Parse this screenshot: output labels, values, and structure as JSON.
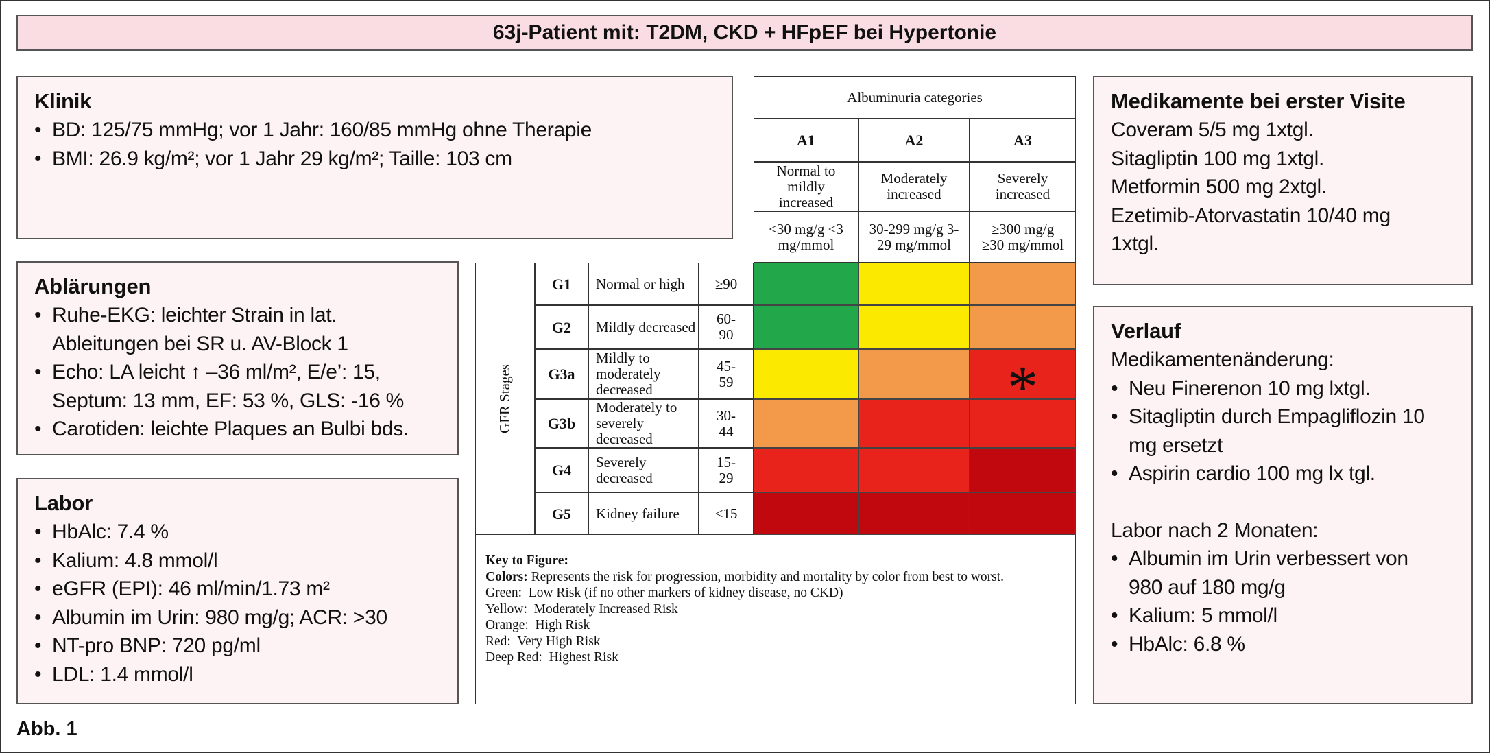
{
  "title": "63j-Patient mit: T2DM, CKD + HFpEF bei Hypertonie",
  "klinik": {
    "heading": "Klinik",
    "items": [
      "BD: 125/75 mmHg; vor 1 Jahr: 160/85 mmHg ohne Therapie",
      "BMI: 26.9 kg/m²; vor 1 Jahr 29 kg/m²; Taille: 103 cm"
    ]
  },
  "ablaerungen": {
    "heading": "Ablärungen",
    "items": [
      "Ruhe-EKG: leichter Strain in lat. Ableitungen bei SR u. AV-Block 1",
      "Echo: LA leicht ↑ –36 ml/m², E/e’: 15, Septum: 13 mm, EF: 53 %, GLS: -16 %",
      "Carotiden: leichte Plaques an Bulbi bds."
    ]
  },
  "labor": {
    "heading": "Labor",
    "items": [
      "HbAlc: 7.4 %",
      "Kalium: 4.8 mmol/l",
      "eGFR (EPI): 46 ml/min/1.73 m²",
      "Albumin im Urin: 980 mg/g; ACR: >30",
      "NT-pro BNP: 720 pg/ml",
      "LDL: 1.4 mmol/l"
    ]
  },
  "medikamente": {
    "heading": "Medikamente bei erster Visite",
    "lines": [
      "Coveram 5/5 mg 1xtgl.",
      "Sitagliptin 100 mg 1xtgl.",
      "Metformin 500 mg 2xtgl.",
      "Ezetimib-Atorvastatin 10/40 mg 1xtgl."
    ]
  },
  "verlauf": {
    "heading": "Verlauf",
    "sub1": "Medikamentenänderung:",
    "items1": [
      "Neu Finerenon 10 mg lxtgl.",
      "Sitagliptin durch Empagliflozin 10 mg ersetzt",
      "Aspirin cardio 100 mg lx tgl."
    ],
    "sub2": "Labor nach 2 Monaten:",
    "items2": [
      "Albumin im Urin verbessert von 980 auf 180 mg/g",
      "Kalium: 5 mmol/l",
      "HbAlc: 6.8 %"
    ]
  },
  "figure_label": "Abb. 1",
  "kdigo": {
    "albuminuria_title": "Albuminuria categories",
    "gfr_title": "GFR Stages",
    "columns": [
      {
        "code": "A1",
        "desc": "Normal to mildly increased",
        "range": "<30 mg/g <3 mg/mmol"
      },
      {
        "code": "A2",
        "desc": "Moderately increased",
        "range": "30-299 mg/g 3-29 mg/mmol"
      },
      {
        "code": "A3",
        "desc": "Severely increased",
        "range": "≥300 mg/g ≥30 mg/mmol"
      }
    ],
    "rows": [
      {
        "code": "G1",
        "desc": "Normal or high",
        "range": "≥90",
        "risk": [
          "green",
          "yellow",
          "orange"
        ]
      },
      {
        "code": "G2",
        "desc": "Mildly decreased",
        "range": "60-90",
        "risk": [
          "green",
          "yellow",
          "orange"
        ]
      },
      {
        "code": "G3a",
        "desc": "Mildly to moderately decreased",
        "range": "45-59",
        "risk": [
          "yellow",
          "orange",
          "red"
        ]
      },
      {
        "code": "G3b",
        "desc": "Moderately to severely decreased",
        "range": "30-44",
        "risk": [
          "orange",
          "red",
          "red"
        ]
      },
      {
        "code": "G4",
        "desc": "Severely decreased",
        "range": "15-29",
        "risk": [
          "red",
          "red",
          "deepred"
        ]
      },
      {
        "code": "G5",
        "desc": "Kidney failure",
        "range": "<15",
        "risk": [
          "deepred",
          "deepred",
          "deepred"
        ]
      }
    ],
    "marker": {
      "symbol": "*",
      "row": "G3a",
      "column": "A3"
    },
    "colors": {
      "green": "#22a84b",
      "yellow": "#fbe900",
      "orange": "#f39a4a",
      "red": "#e8231c",
      "deepred": "#c1080f"
    },
    "key": {
      "title": "Key to Figure:",
      "colors_label": "Colors:",
      "colors_text": "Represents the risk for progression, morbidity and mortality by color from best to worst.",
      "lines": [
        "Green:  Low Risk (if no other markers of kidney disease, no CKD)",
        "Yellow:  Moderately Increased Risk",
        "Orange:  High Risk",
        "Red:  Very High Risk",
        "Deep Red:  Highest Risk"
      ]
    }
  }
}
